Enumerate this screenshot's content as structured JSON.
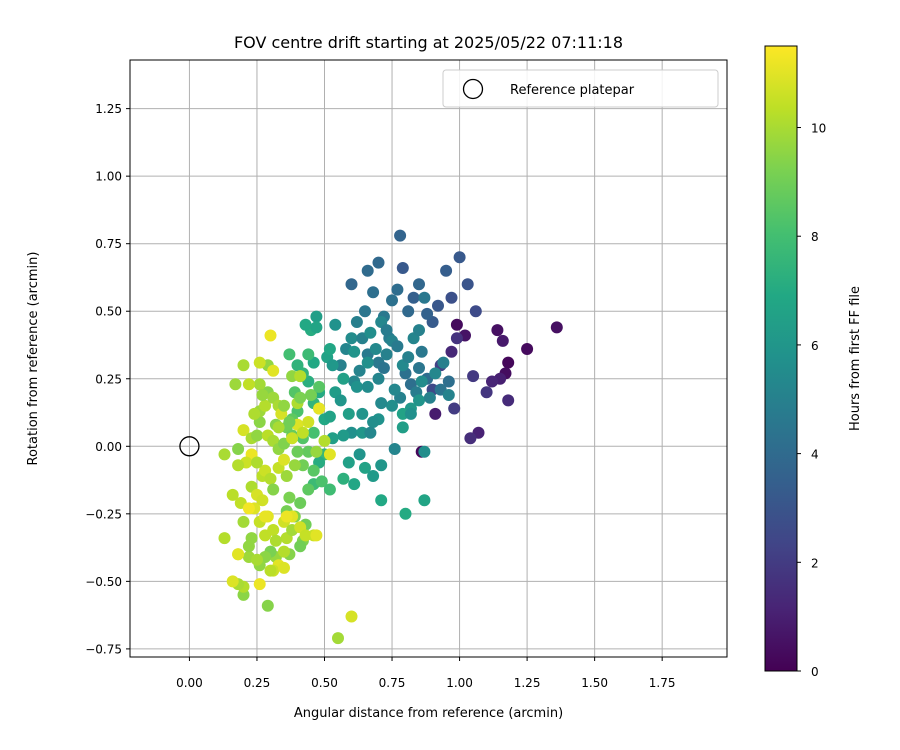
{
  "chart_data": {
    "type": "scatter",
    "title": "FOV centre drift starting at 2025/05/22 07:11:18",
    "xlabel": "Angular distance from reference (arcmin)",
    "ylabel": "Rotation from reference (arcmin)",
    "colorbar_label": "Hours from first FF file",
    "xlim": [
      -0.22,
      1.99
    ],
    "ylim": [
      -0.78,
      1.43
    ],
    "clim": [
      0,
      11.5
    ],
    "xticks": [
      "0.00",
      "0.25",
      "0.50",
      "0.75",
      "1.00",
      "1.25",
      "1.50",
      "1.75"
    ],
    "yticks": [
      "−0.75",
      "−0.50",
      "−0.25",
      "0.00",
      "0.25",
      "0.50",
      "0.75",
      "1.00",
      "1.25"
    ],
    "colorbar_ticks": [
      "0",
      "2",
      "4",
      "6",
      "8",
      "10"
    ],
    "grid": true,
    "colormap": "viridis",
    "legend": {
      "position": "top-right",
      "entries": [
        "Reference platepar"
      ]
    },
    "reference_point": {
      "x": 0.0,
      "y": 0.0,
      "marker": "open-circle"
    },
    "points": [
      [
        0.99,
        0.45,
        0.3
      ],
      [
        1.02,
        0.41,
        0.6
      ],
      [
        1.14,
        0.43,
        0.5
      ],
      [
        1.16,
        0.39,
        0.8
      ],
      [
        1.18,
        0.31,
        0.2
      ],
      [
        1.17,
        0.27,
        0.4
      ],
      [
        1.25,
        0.36,
        0.3
      ],
      [
        1.36,
        0.44,
        0.5
      ],
      [
        1.15,
        0.25,
        1.0
      ],
      [
        1.12,
        0.24,
        1.2
      ],
      [
        1.18,
        0.17,
        1.4
      ],
      [
        1.07,
        0.05,
        1.1
      ],
      [
        1.04,
        0.03,
        1.5
      ],
      [
        0.91,
        0.12,
        0.9
      ],
      [
        0.86,
        -0.02,
        0.2
      ],
      [
        1.1,
        0.2,
        1.8
      ],
      [
        1.05,
        0.26,
        1.9
      ],
      [
        0.99,
        0.4,
        1.7
      ],
      [
        0.97,
        0.35,
        1.3
      ],
      [
        0.98,
        0.14,
        2.0
      ],
      [
        0.93,
        0.3,
        2.2
      ],
      [
        0.9,
        0.21,
        2.5
      ],
      [
        1.0,
        0.7,
        3.2
      ],
      [
        1.03,
        0.6,
        3.0
      ],
      [
        0.95,
        0.65,
        3.4
      ],
      [
        1.06,
        0.5,
        2.6
      ],
      [
        0.97,
        0.55,
        2.8
      ],
      [
        0.92,
        0.52,
        3.1
      ],
      [
        0.9,
        0.46,
        3.3
      ],
      [
        0.88,
        0.49,
        3.6
      ],
      [
        0.85,
        0.6,
        3.8
      ],
      [
        0.83,
        0.55,
        3.5
      ],
      [
        0.81,
        0.5,
        3.9
      ],
      [
        0.78,
        0.78,
        3.7
      ],
      [
        0.79,
        0.66,
        3.2
      ],
      [
        0.7,
        0.68,
        3.9
      ],
      [
        0.66,
        0.65,
        4.0
      ],
      [
        0.6,
        0.6,
        3.8
      ],
      [
        0.68,
        0.57,
        4.2
      ],
      [
        0.65,
        0.5,
        4.5
      ],
      [
        0.72,
        0.48,
        4.6
      ],
      [
        0.75,
        0.54,
        4.3
      ],
      [
        0.77,
        0.58,
        4.1
      ],
      [
        0.74,
        0.4,
        4.8
      ],
      [
        0.62,
        0.46,
        4.9
      ],
      [
        0.58,
        0.36,
        5.2
      ],
      [
        0.56,
        0.3,
        5.0
      ],
      [
        0.63,
        0.28,
        5.1
      ],
      [
        0.61,
        0.24,
        5.3
      ],
      [
        0.66,
        0.34,
        4.7
      ],
      [
        0.7,
        0.31,
        4.6
      ],
      [
        0.72,
        0.29,
        4.4
      ],
      [
        0.8,
        0.27,
        4.3
      ],
      [
        0.82,
        0.23,
        4.2
      ],
      [
        0.85,
        0.29,
        4.5
      ],
      [
        0.86,
        0.35,
        4.6
      ],
      [
        0.88,
        0.25,
        4.1
      ],
      [
        0.93,
        0.21,
        4.4
      ],
      [
        0.96,
        0.24,
        4.2
      ],
      [
        0.84,
        0.2,
        4.8
      ],
      [
        0.78,
        0.18,
        5.0
      ],
      [
        0.76,
        0.21,
        5.3
      ],
      [
        0.75,
        0.15,
        5.6
      ],
      [
        0.71,
        0.16,
        5.4
      ],
      [
        0.7,
        0.1,
        5.8
      ],
      [
        0.68,
        0.09,
        5.6
      ],
      [
        0.64,
        0.12,
        5.9
      ],
      [
        0.6,
        0.05,
        5.7
      ],
      [
        0.64,
        0.05,
        6.0
      ],
      [
        0.67,
        0.05,
        5.3
      ],
      [
        0.57,
        0.04,
        6.2
      ],
      [
        0.53,
        0.03,
        6.4
      ],
      [
        0.76,
        -0.01,
        5.2
      ],
      [
        0.87,
        -0.02,
        5.6
      ],
      [
        0.71,
        -0.07,
        6.0
      ],
      [
        0.68,
        -0.11,
        6.2
      ],
      [
        0.63,
        -0.03,
        5.9
      ],
      [
        0.59,
        -0.06,
        6.5
      ],
      [
        0.65,
        -0.08,
        6.6
      ],
      [
        0.61,
        -0.14,
        6.8
      ],
      [
        0.71,
        -0.2,
        6.9
      ],
      [
        0.8,
        -0.25,
        7.0
      ],
      [
        0.87,
        -0.2,
        6.7
      ],
      [
        0.57,
        -0.12,
        7.3
      ],
      [
        0.5,
        -0.03,
        7.6
      ],
      [
        0.46,
        -0.14,
        7.8
      ],
      [
        0.48,
        -0.06,
        7.1
      ],
      [
        0.5,
        0.1,
        6.9
      ],
      [
        0.48,
        0.14,
        7.3
      ],
      [
        0.52,
        0.11,
        6.6
      ],
      [
        0.54,
        0.2,
        6.3
      ],
      [
        0.48,
        0.2,
        7.0
      ],
      [
        0.46,
        0.16,
        7.5
      ],
      [
        0.44,
        0.24,
        7.2
      ],
      [
        0.42,
        0.27,
        7.5
      ],
      [
        0.4,
        0.3,
        7.4
      ],
      [
        0.46,
        0.31,
        6.9
      ],
      [
        0.51,
        0.33,
        6.6
      ],
      [
        0.53,
        0.3,
        6.1
      ],
      [
        0.56,
        0.17,
        6.0
      ],
      [
        0.59,
        0.12,
        6.4
      ],
      [
        0.62,
        0.22,
        5.8
      ],
      [
        0.66,
        0.22,
        5.5
      ],
      [
        0.69,
        0.36,
        5.4
      ],
      [
        0.7,
        0.25,
        5.2
      ],
      [
        0.73,
        0.34,
        5.0
      ],
      [
        0.75,
        0.39,
        5.1
      ],
      [
        0.79,
        0.3,
        5.4
      ],
      [
        0.81,
        0.33,
        5.0
      ],
      [
        0.83,
        0.4,
        5.2
      ],
      [
        0.85,
        0.43,
        5.0
      ],
      [
        0.87,
        0.55,
        4.6
      ],
      [
        0.86,
        0.24,
        5.5
      ],
      [
        0.85,
        0.17,
        5.9
      ],
      [
        0.82,
        0.14,
        6.1
      ],
      [
        0.79,
        0.07,
        6.4
      ],
      [
        0.79,
        0.12,
        6.6
      ],
      [
        0.82,
        0.12,
        5.7
      ],
      [
        0.89,
        0.18,
        5.0
      ],
      [
        0.91,
        0.27,
        5.3
      ],
      [
        0.94,
        0.31,
        4.9
      ],
      [
        0.96,
        0.19,
        5.1
      ],
      [
        0.66,
        0.31,
        5.7
      ],
      [
        0.61,
        0.35,
        5.9
      ],
      [
        0.57,
        0.25,
        6.5
      ],
      [
        0.54,
        0.45,
        5.8
      ],
      [
        0.6,
        0.4,
        5.5
      ],
      [
        0.64,
        0.4,
        5.0
      ],
      [
        0.67,
        0.42,
        5.6
      ],
      [
        0.71,
        0.46,
        5.3
      ],
      [
        0.73,
        0.43,
        4.8
      ],
      [
        0.77,
        0.37,
        4.7
      ],
      [
        0.45,
        0.43,
        7.1
      ],
      [
        0.43,
        0.45,
        6.9
      ],
      [
        0.47,
        0.48,
        6.4
      ],
      [
        0.47,
        0.44,
        6.7
      ],
      [
        0.52,
        0.36,
        6.8
      ],
      [
        0.44,
        0.34,
        7.8
      ],
      [
        0.41,
        0.26,
        8.3
      ],
      [
        0.39,
        0.2,
        8.4
      ],
      [
        0.4,
        0.13,
        8.2
      ],
      [
        0.38,
        0.1,
        8.6
      ],
      [
        0.36,
        0.07,
        9.0
      ],
      [
        0.38,
        0.04,
        8.8
      ],
      [
        0.42,
        0.03,
        8.4
      ],
      [
        0.46,
        0.05,
        8.1
      ],
      [
        0.44,
        -0.02,
        8.7
      ],
      [
        0.4,
        -0.02,
        8.9
      ],
      [
        0.42,
        -0.07,
        9.0
      ],
      [
        0.46,
        -0.09,
        8.5
      ],
      [
        0.49,
        -0.13,
        8.2
      ],
      [
        0.52,
        -0.16,
        7.9
      ],
      [
        0.44,
        -0.16,
        8.6
      ],
      [
        0.41,
        -0.21,
        8.9
      ],
      [
        0.37,
        -0.19,
        9.2
      ],
      [
        0.36,
        -0.24,
        9.1
      ],
      [
        0.39,
        -0.26,
        9.3
      ],
      [
        0.43,
        -0.29,
        9.0
      ],
      [
        0.42,
        -0.35,
        9.3
      ],
      [
        0.41,
        -0.37,
        9.0
      ],
      [
        0.37,
        -0.4,
        9.4
      ],
      [
        0.32,
        -0.41,
        9.7
      ],
      [
        0.3,
        -0.39,
        9.2
      ],
      [
        0.28,
        -0.41,
        9.5
      ],
      [
        0.26,
        -0.44,
        9.6
      ],
      [
        0.29,
        -0.59,
        9.4
      ],
      [
        0.2,
        -0.55,
        9.5
      ],
      [
        0.2,
        -0.52,
        10.2
      ],
      [
        0.18,
        -0.51,
        10.0
      ],
      [
        0.16,
        -0.5,
        10.9
      ],
      [
        0.22,
        -0.41,
        9.8
      ],
      [
        0.22,
        -0.37,
        9.6
      ],
      [
        0.18,
        -0.4,
        10.8
      ],
      [
        0.13,
        -0.34,
        10.2
      ],
      [
        0.2,
        -0.28,
        9.9
      ],
      [
        0.16,
        -0.18,
        10.3
      ],
      [
        0.19,
        -0.21,
        10.4
      ],
      [
        0.23,
        -0.15,
        10.1
      ],
      [
        0.25,
        -0.18,
        10.8
      ],
      [
        0.27,
        -0.11,
        10.3
      ],
      [
        0.24,
        -0.23,
        10.9
      ],
      [
        0.26,
        -0.28,
        10.5
      ],
      [
        0.29,
        -0.26,
        11.0
      ],
      [
        0.31,
        -0.31,
        10.4
      ],
      [
        0.35,
        -0.28,
        10.7
      ],
      [
        0.36,
        -0.34,
        10.2
      ],
      [
        0.38,
        -0.31,
        9.9
      ],
      [
        0.32,
        -0.35,
        10.1
      ],
      [
        0.33,
        -0.44,
        11.0
      ],
      [
        0.31,
        -0.46,
        10.6
      ],
      [
        0.35,
        -0.45,
        10.9
      ],
      [
        0.26,
        -0.51,
        11.2
      ],
      [
        0.38,
        -0.26,
        11.0
      ],
      [
        0.41,
        -0.3,
        10.7
      ],
      [
        0.46,
        -0.33,
        10.6
      ],
      [
        0.43,
        -0.33,
        10.5
      ],
      [
        0.28,
        -0.09,
        10.6
      ],
      [
        0.3,
        -0.12,
        10.2
      ],
      [
        0.33,
        -0.08,
        10.5
      ],
      [
        0.35,
        -0.05,
        10.9
      ],
      [
        0.36,
        -0.11,
        9.8
      ],
      [
        0.39,
        -0.07,
        9.7
      ],
      [
        0.23,
        -0.03,
        11.2
      ],
      [
        0.21,
        -0.06,
        10.6
      ],
      [
        0.18,
        -0.07,
        10.2
      ],
      [
        0.13,
        -0.03,
        10.0
      ],
      [
        0.18,
        -0.01,
        9.4
      ],
      [
        0.2,
        0.06,
        10.8
      ],
      [
        0.23,
        0.03,
        10.0
      ],
      [
        0.25,
        0.04,
        9.6
      ],
      [
        0.26,
        0.09,
        9.5
      ],
      [
        0.26,
        0.13,
        9.8
      ],
      [
        0.24,
        0.12,
        10.1
      ],
      [
        0.28,
        0.15,
        10.2
      ],
      [
        0.29,
        0.2,
        9.4
      ],
      [
        0.31,
        0.18,
        9.8
      ],
      [
        0.33,
        0.15,
        10.0
      ],
      [
        0.29,
        0.04,
        10.3
      ],
      [
        0.31,
        0.02,
        10.0
      ],
      [
        0.33,
        -0.01,
        9.6
      ],
      [
        0.35,
        0.01,
        9.3
      ],
      [
        0.38,
        0.03,
        10.6
      ],
      [
        0.4,
        0.08,
        10.9
      ],
      [
        0.42,
        0.05,
        10.4
      ],
      [
        0.44,
        0.09,
        10.7
      ],
      [
        0.48,
        0.14,
        11.1
      ],
      [
        0.5,
        0.02,
        10.2
      ],
      [
        0.47,
        -0.02,
        9.7
      ],
      [
        0.52,
        -0.03,
        11.0
      ],
      [
        0.4,
        0.16,
        10.1
      ],
      [
        0.34,
        0.12,
        10.8
      ],
      [
        0.35,
        0.15,
        9.6
      ],
      [
        0.32,
        0.08,
        9.4
      ],
      [
        0.37,
        0.09,
        9.0
      ],
      [
        0.41,
        0.18,
        9.2
      ],
      [
        0.38,
        0.26,
        9.6
      ],
      [
        0.41,
        0.26,
        10.2
      ],
      [
        0.45,
        0.19,
        9.1
      ],
      [
        0.48,
        0.22,
        8.5
      ],
      [
        0.37,
        0.34,
        8.0
      ],
      [
        0.29,
        0.3,
        9.6
      ],
      [
        0.26,
        0.31,
        10.6
      ],
      [
        0.2,
        0.3,
        10.0
      ],
      [
        0.3,
        0.41,
        11.2
      ],
      [
        0.31,
        0.28,
        11.0
      ],
      [
        0.26,
        0.23,
        9.9
      ],
      [
        0.22,
        0.23,
        10.4
      ],
      [
        0.17,
        0.23,
        9.8
      ],
      [
        0.27,
        0.19,
        9.7
      ],
      [
        0.47,
        -0.33,
        11.0
      ],
      [
        0.22,
        -0.23,
        11.3
      ],
      [
        0.28,
        -0.26,
        11.1
      ],
      [
        0.36,
        -0.26,
        11.2
      ],
      [
        0.35,
        -0.39,
        10.2
      ],
      [
        0.3,
        -0.46,
        10.3
      ],
      [
        0.25,
        -0.42,
        10.0
      ],
      [
        0.23,
        -0.34,
        9.6
      ],
      [
        0.18,
        -0.4,
        11.0
      ],
      [
        0.55,
        -0.71,
        9.9
      ],
      [
        0.6,
        -0.63,
        10.8
      ],
      [
        0.33,
        0.07,
        10.0
      ],
      [
        0.31,
        -0.16,
        9.4
      ],
      [
        0.27,
        -0.2,
        10.7
      ],
      [
        0.25,
        -0.06,
        10.1
      ],
      [
        0.28,
        -0.33,
        10.4
      ]
    ]
  }
}
